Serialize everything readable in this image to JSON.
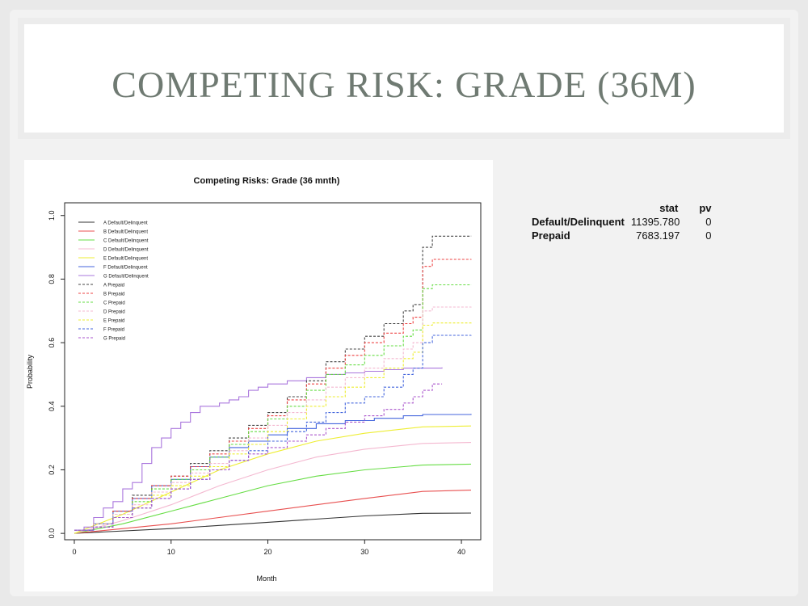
{
  "slide": {
    "title": "COMPETING RISK: GRADE (36M)"
  },
  "stats_table": {
    "headers": [
      "",
      "stat",
      "pv"
    ],
    "rows": [
      {
        "label": "Default/Delinquent",
        "stat": "11395.780",
        "pv": "0"
      },
      {
        "label": "Prepaid",
        "stat": "7683.197",
        "pv": "0"
      }
    ]
  },
  "chart_data": {
    "type": "line",
    "title": "Competing Risks: Grade (36 mnth)",
    "xlabel": "Month",
    "ylabel": "Probability",
    "xlim": [
      0,
      41
    ],
    "ylim": [
      0,
      1
    ],
    "xticks": [
      0,
      10,
      20,
      30,
      40
    ],
    "yticks": [
      0.0,
      0.2,
      0.4,
      0.6,
      0.8,
      1.0
    ],
    "legend_position": "top-left",
    "series": [
      {
        "name": "A Default/Delinquent",
        "color": "#333333",
        "dash": false,
        "step": false,
        "points": [
          [
            0,
            0
          ],
          [
            10,
            0.015
          ],
          [
            20,
            0.035
          ],
          [
            30,
            0.055
          ],
          [
            36,
            0.063
          ],
          [
            41,
            0.064
          ]
        ]
      },
      {
        "name": "B Default/Delinquent",
        "color": "#e85050",
        "dash": false,
        "step": false,
        "points": [
          [
            0,
            0
          ],
          [
            10,
            0.03
          ],
          [
            20,
            0.07
          ],
          [
            30,
            0.11
          ],
          [
            36,
            0.132
          ],
          [
            41,
            0.136
          ]
        ]
      },
      {
        "name": "C Default/Delinquent",
        "color": "#66dd44",
        "dash": false,
        "step": false,
        "points": [
          [
            0,
            0
          ],
          [
            5,
            0.03
          ],
          [
            10,
            0.07
          ],
          [
            15,
            0.11
          ],
          [
            20,
            0.15
          ],
          [
            25,
            0.18
          ],
          [
            30,
            0.2
          ],
          [
            36,
            0.215
          ],
          [
            41,
            0.218
          ]
        ]
      },
      {
        "name": "D Default/Delinquent",
        "color": "#f4b8d0",
        "dash": false,
        "step": false,
        "points": [
          [
            0,
            0
          ],
          [
            5,
            0.04
          ],
          [
            10,
            0.09
          ],
          [
            15,
            0.15
          ],
          [
            20,
            0.2
          ],
          [
            25,
            0.24
          ],
          [
            30,
            0.265
          ],
          [
            36,
            0.283
          ],
          [
            41,
            0.286
          ]
        ]
      },
      {
        "name": "E Default/Delinquent",
        "color": "#eeee33",
        "dash": false,
        "step": false,
        "points": [
          [
            0,
            0
          ],
          [
            5,
            0.06
          ],
          [
            10,
            0.13
          ],
          [
            15,
            0.2
          ],
          [
            20,
            0.25
          ],
          [
            25,
            0.29
          ],
          [
            30,
            0.315
          ],
          [
            36,
            0.335
          ],
          [
            41,
            0.338
          ]
        ]
      },
      {
        "name": "F Default/Delinquent",
        "color": "#4466dd",
        "dash": false,
        "step": true,
        "points": [
          [
            0,
            0.01
          ],
          [
            2,
            0.03
          ],
          [
            4,
            0.07
          ],
          [
            6,
            0.11
          ],
          [
            8,
            0.15
          ],
          [
            10,
            0.17
          ],
          [
            12,
            0.21
          ],
          [
            14,
            0.24
          ],
          [
            16,
            0.27
          ],
          [
            18,
            0.29
          ],
          [
            20,
            0.31
          ],
          [
            22,
            0.33
          ],
          [
            25,
            0.345
          ],
          [
            28,
            0.355
          ],
          [
            31,
            0.362
          ],
          [
            34,
            0.37
          ],
          [
            36,
            0.374
          ],
          [
            41,
            0.376
          ]
        ]
      },
      {
        "name": "G Default/Delinquent",
        "color": "#aa77dd",
        "dash": false,
        "step": true,
        "points": [
          [
            0,
            0.01
          ],
          [
            1,
            0.02
          ],
          [
            2,
            0.05
          ],
          [
            3,
            0.08
          ],
          [
            4,
            0.1
          ],
          [
            5,
            0.14
          ],
          [
            6,
            0.16
          ],
          [
            7,
            0.22
          ],
          [
            8,
            0.27
          ],
          [
            9,
            0.3
          ],
          [
            10,
            0.33
          ],
          [
            11,
            0.35
          ],
          [
            12,
            0.38
          ],
          [
            13,
            0.4
          ],
          [
            15,
            0.41
          ],
          [
            16,
            0.42
          ],
          [
            17,
            0.43
          ],
          [
            18,
            0.45
          ],
          [
            19,
            0.46
          ],
          [
            20,
            0.47
          ],
          [
            22,
            0.48
          ],
          [
            24,
            0.49
          ],
          [
            26,
            0.5
          ],
          [
            28,
            0.505
          ],
          [
            30,
            0.51
          ],
          [
            32,
            0.515
          ],
          [
            34,
            0.52
          ],
          [
            38,
            0.522
          ]
        ]
      },
      {
        "name": "A Prepaid",
        "color": "#444444",
        "dash": true,
        "step": true,
        "points": [
          [
            0,
            0.01
          ],
          [
            2,
            0.03
          ],
          [
            4,
            0.07
          ],
          [
            6,
            0.12
          ],
          [
            8,
            0.15
          ],
          [
            10,
            0.18
          ],
          [
            12,
            0.22
          ],
          [
            14,
            0.26
          ],
          [
            16,
            0.3
          ],
          [
            18,
            0.34
          ],
          [
            20,
            0.38
          ],
          [
            22,
            0.43
          ],
          [
            24,
            0.48
          ],
          [
            26,
            0.54
          ],
          [
            28,
            0.58
          ],
          [
            30,
            0.62
          ],
          [
            32,
            0.66
          ],
          [
            34,
            0.7
          ],
          [
            35,
            0.72
          ],
          [
            36,
            0.9
          ],
          [
            37,
            0.935
          ],
          [
            41,
            0.936
          ]
        ]
      },
      {
        "name": "B Prepaid",
        "color": "#ee4444",
        "dash": true,
        "step": true,
        "points": [
          [
            0,
            0.01
          ],
          [
            2,
            0.03
          ],
          [
            4,
            0.07
          ],
          [
            6,
            0.11
          ],
          [
            8,
            0.15
          ],
          [
            10,
            0.18
          ],
          [
            12,
            0.21
          ],
          [
            14,
            0.25
          ],
          [
            16,
            0.29
          ],
          [
            18,
            0.33
          ],
          [
            20,
            0.37
          ],
          [
            22,
            0.42
          ],
          [
            24,
            0.47
          ],
          [
            26,
            0.52
          ],
          [
            28,
            0.56
          ],
          [
            30,
            0.6
          ],
          [
            32,
            0.63
          ],
          [
            34,
            0.66
          ],
          [
            35,
            0.68
          ],
          [
            36,
            0.84
          ],
          [
            37,
            0.862
          ],
          [
            41,
            0.863
          ]
        ]
      },
      {
        "name": "C Prepaid",
        "color": "#66dd44",
        "dash": true,
        "step": true,
        "points": [
          [
            0,
            0.01
          ],
          [
            2,
            0.03
          ],
          [
            4,
            0.06
          ],
          [
            6,
            0.1
          ],
          [
            8,
            0.14
          ],
          [
            10,
            0.17
          ],
          [
            12,
            0.2
          ],
          [
            14,
            0.24
          ],
          [
            16,
            0.28
          ],
          [
            18,
            0.32
          ],
          [
            20,
            0.36
          ],
          [
            22,
            0.4
          ],
          [
            24,
            0.45
          ],
          [
            26,
            0.5
          ],
          [
            28,
            0.53
          ],
          [
            30,
            0.56
          ],
          [
            32,
            0.59
          ],
          [
            34,
            0.62
          ],
          [
            35,
            0.64
          ],
          [
            36,
            0.77
          ],
          [
            37,
            0.782
          ],
          [
            41,
            0.783
          ]
        ]
      },
      {
        "name": "D Prepaid",
        "color": "#f4b8d0",
        "dash": true,
        "step": true,
        "points": [
          [
            0,
            0.01
          ],
          [
            2,
            0.03
          ],
          [
            4,
            0.06
          ],
          [
            6,
            0.09
          ],
          [
            8,
            0.13
          ],
          [
            10,
            0.16
          ],
          [
            12,
            0.19
          ],
          [
            14,
            0.22
          ],
          [
            16,
            0.26
          ],
          [
            18,
            0.3
          ],
          [
            20,
            0.34
          ],
          [
            22,
            0.38
          ],
          [
            24,
            0.42
          ],
          [
            26,
            0.46
          ],
          [
            28,
            0.49
          ],
          [
            30,
            0.52
          ],
          [
            32,
            0.55
          ],
          [
            34,
            0.58
          ],
          [
            35,
            0.6
          ],
          [
            36,
            0.7
          ],
          [
            37,
            0.712
          ],
          [
            41,
            0.713
          ]
        ]
      },
      {
        "name": "E Prepaid",
        "color": "#eeee33",
        "dash": true,
        "step": true,
        "points": [
          [
            0,
            0.01
          ],
          [
            2,
            0.02
          ],
          [
            4,
            0.05
          ],
          [
            6,
            0.08
          ],
          [
            8,
            0.12
          ],
          [
            10,
            0.15
          ],
          [
            12,
            0.18
          ],
          [
            14,
            0.21
          ],
          [
            16,
            0.25
          ],
          [
            18,
            0.28
          ],
          [
            20,
            0.32
          ],
          [
            22,
            0.36
          ],
          [
            24,
            0.4
          ],
          [
            26,
            0.43
          ],
          [
            28,
            0.46
          ],
          [
            30,
            0.49
          ],
          [
            32,
            0.52
          ],
          [
            34,
            0.55
          ],
          [
            35,
            0.57
          ],
          [
            36,
            0.655
          ],
          [
            37,
            0.662
          ],
          [
            41,
            0.663
          ]
        ]
      },
      {
        "name": "F Prepaid",
        "color": "#4466dd",
        "dash": true,
        "step": true,
        "points": [
          [
            0,
            0.01
          ],
          [
            2,
            0.02
          ],
          [
            4,
            0.05
          ],
          [
            6,
            0.08
          ],
          [
            8,
            0.11
          ],
          [
            10,
            0.14
          ],
          [
            12,
            0.17
          ],
          [
            14,
            0.2
          ],
          [
            16,
            0.23
          ],
          [
            18,
            0.26
          ],
          [
            20,
            0.29
          ],
          [
            22,
            0.32
          ],
          [
            24,
            0.35
          ],
          [
            26,
            0.38
          ],
          [
            28,
            0.41
          ],
          [
            30,
            0.43
          ],
          [
            32,
            0.46
          ],
          [
            34,
            0.5
          ],
          [
            35,
            0.52
          ],
          [
            36,
            0.6
          ],
          [
            37,
            0.623
          ],
          [
            41,
            0.624
          ]
        ]
      },
      {
        "name": "G Prepaid",
        "color": "#aa55cc",
        "dash": true,
        "step": true,
        "points": [
          [
            0,
            0.01
          ],
          [
            2,
            0.02
          ],
          [
            4,
            0.05
          ],
          [
            6,
            0.08
          ],
          [
            8,
            0.11
          ],
          [
            10,
            0.14
          ],
          [
            12,
            0.17
          ],
          [
            14,
            0.2
          ],
          [
            16,
            0.23
          ],
          [
            18,
            0.25
          ],
          [
            20,
            0.27
          ],
          [
            22,
            0.29
          ],
          [
            24,
            0.31
          ],
          [
            26,
            0.33
          ],
          [
            28,
            0.35
          ],
          [
            30,
            0.37
          ],
          [
            32,
            0.39
          ],
          [
            34,
            0.41
          ],
          [
            35,
            0.43
          ],
          [
            36,
            0.45
          ],
          [
            37,
            0.47
          ],
          [
            38,
            0.47
          ]
        ]
      }
    ]
  }
}
